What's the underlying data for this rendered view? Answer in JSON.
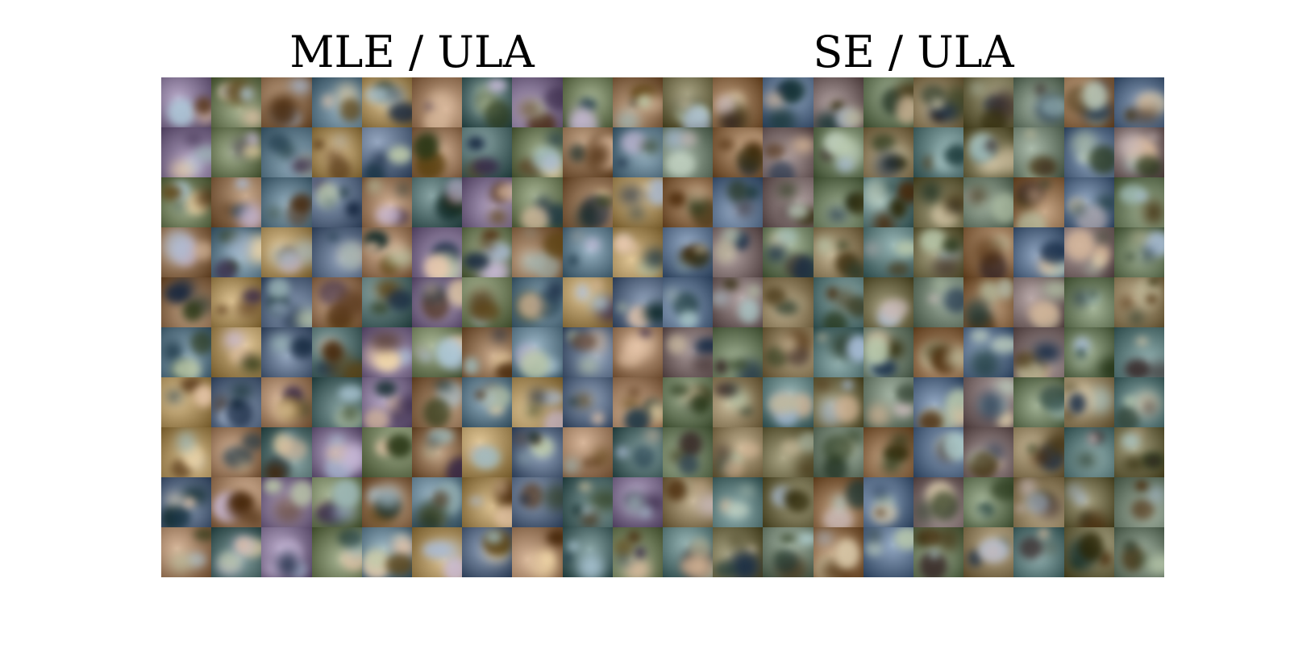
{
  "figure": {
    "left_panel": {
      "title": "MLE / ULA",
      "grid": {
        "rows": 10,
        "cols": 10
      },
      "palette": [
        "#5a6b84",
        "#a48a5a",
        "#5f7a8a",
        "#8a6b4e",
        "#6e7b5a",
        "#7d6e8d",
        "#4f6a6a",
        "#9b7a5e"
      ]
    },
    "right_panel": {
      "title": "SE / ULA",
      "grid": {
        "rows": 10,
        "cols": 10
      },
      "palette": [
        "#6f6a4a",
        "#5c7a7a",
        "#8a7a5a",
        "#6a7a5d",
        "#7a6a6a",
        "#5a6f8a",
        "#8b6a4a",
        "#6f7f6f"
      ]
    }
  }
}
